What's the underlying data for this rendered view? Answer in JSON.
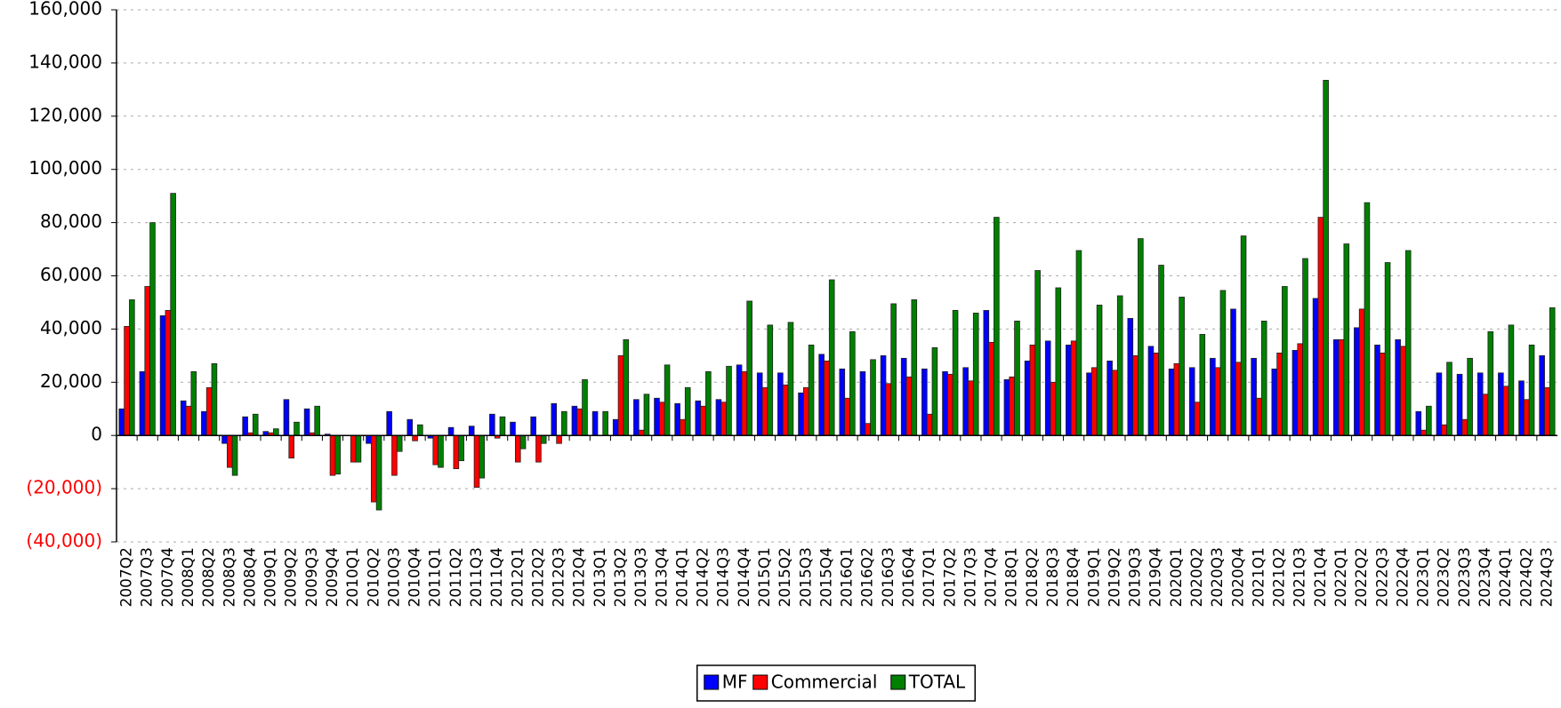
{
  "chart_data": {
    "type": "bar",
    "categories": [
      "2007Q2",
      "2007Q3",
      "2007Q4",
      "2008Q1",
      "2008Q2",
      "2008Q3",
      "2008Q4",
      "2009Q1",
      "2009Q2",
      "2009Q3",
      "2009Q4",
      "2010Q1",
      "2010Q2",
      "2010Q3",
      "2010Q4",
      "2011Q1",
      "2011Q2",
      "2011Q3",
      "2011Q4",
      "2012Q1",
      "2012Q2",
      "2012Q3",
      "2012Q4",
      "2013Q1",
      "2013Q2",
      "2013Q3",
      "2013Q4",
      "2014Q1",
      "2014Q2",
      "2014Q3",
      "2014Q4",
      "2015Q1",
      "2015Q2",
      "2015Q3",
      "2015Q4",
      "2016Q1",
      "2016Q2",
      "2016Q3",
      "2016Q4",
      "2017Q1",
      "2017Q2",
      "2017Q3",
      "2017Q4",
      "2018Q1",
      "2018Q2",
      "2018Q3",
      "2018Q4",
      "2019Q1",
      "2019Q2",
      "2019Q3",
      "2019Q4",
      "2020Q1",
      "2020Q2",
      "2020Q3",
      "2020Q4",
      "2021Q1",
      "2021Q2",
      "2021Q3",
      "2021Q4",
      "2022Q1",
      "2022Q2",
      "2022Q3",
      "2022Q4",
      "2023Q1",
      "2023Q2",
      "2023Q3",
      "2023Q4",
      "2024Q1",
      "2024Q2",
      "2024Q3"
    ],
    "series": [
      {
        "name": "MF",
        "color": "#0000ff",
        "values": [
          10000,
          24000,
          45000,
          13000,
          9000,
          -3000,
          7000,
          1500,
          13500,
          10000,
          500,
          0,
          -3000,
          9000,
          6000,
          -1000,
          3000,
          3500,
          8000,
          5000,
          7000,
          12000,
          11000,
          9000,
          6000,
          13500,
          14000,
          12000,
          13000,
          13500,
          26500,
          23500,
          23500,
          16000,
          30500,
          25000,
          24000,
          30000,
          29000,
          25000,
          24000,
          25500,
          47000,
          21000,
          28000,
          35500,
          34000,
          23500,
          28000,
          44000,
          33500,
          25000,
          25500,
          29000,
          47500,
          29000,
          25000,
          32000,
          51500,
          36000,
          40500,
          34000,
          36000,
          9000,
          23500,
          23000,
          23500,
          23500,
          20500,
          30000
        ]
      },
      {
        "name": "Commercial",
        "color": "#ff0000",
        "values": [
          41000,
          56000,
          47000,
          11000,
          18000,
          -12000,
          1000,
          1000,
          -8500,
          1000,
          -15000,
          -10000,
          -25000,
          -15000,
          -2000,
          -11000,
          -12500,
          -19500,
          -1000,
          -10000,
          -10000,
          -3000,
          10000,
          0,
          30000,
          2000,
          12500,
          6000,
          11000,
          12500,
          24000,
          18000,
          19000,
          18000,
          28000,
          14000,
          4500,
          19500,
          22000,
          8000,
          23000,
          20500,
          35000,
          22000,
          34000,
          20000,
          35500,
          25500,
          24500,
          30000,
          31000,
          27000,
          12500,
          25500,
          27500,
          14000,
          31000,
          34500,
          82000,
          36000,
          47500,
          31000,
          33500,
          2000,
          4000,
          6000,
          15500,
          18500,
          13500,
          18000
        ]
      },
      {
        "name": "TOTAL",
        "color": "#008000",
        "values": [
          51000,
          80000,
          91000,
          24000,
          27000,
          -15000,
          8000,
          2500,
          5000,
          11000,
          -14500,
          -10000,
          -28000,
          -6000,
          4000,
          -12000,
          -9500,
          -16000,
          7000,
          -5000,
          -3000,
          9000,
          21000,
          9000,
          36000,
          15500,
          26500,
          18000,
          24000,
          26000,
          50500,
          41500,
          42500,
          34000,
          58500,
          39000,
          28500,
          49500,
          51000,
          33000,
          47000,
          46000,
          82000,
          43000,
          62000,
          55500,
          69500,
          49000,
          52500,
          74000,
          64000,
          52000,
          38000,
          54500,
          75000,
          43000,
          56000,
          66500,
          133500,
          72000,
          87500,
          65000,
          69500,
          11000,
          27500,
          29000,
          39000,
          41500,
          34000,
          48000
        ]
      }
    ],
    "ylim": [
      -40000,
      160000
    ],
    "yticks": [
      {
        "value": -40000,
        "label": "(40,000)"
      },
      {
        "value": -20000,
        "label": "(20,000)"
      },
      0,
      {
        "value": 20000,
        "label": "20,000"
      },
      {
        "value": 40000,
        "label": "40,000"
      },
      {
        "value": 60000,
        "label": "60,000"
      },
      {
        "value": 80000,
        "label": "80,000"
      },
      {
        "value": 100000,
        "label": "100,000"
      },
      {
        "value": 120000,
        "label": "120,000"
      },
      {
        "value": 140000,
        "label": "140,000"
      },
      {
        "value": 160000,
        "label": "160,000"
      }
    ],
    "grid": true,
    "legend": "bottom",
    "negative_tick_color": "#ff0000"
  }
}
